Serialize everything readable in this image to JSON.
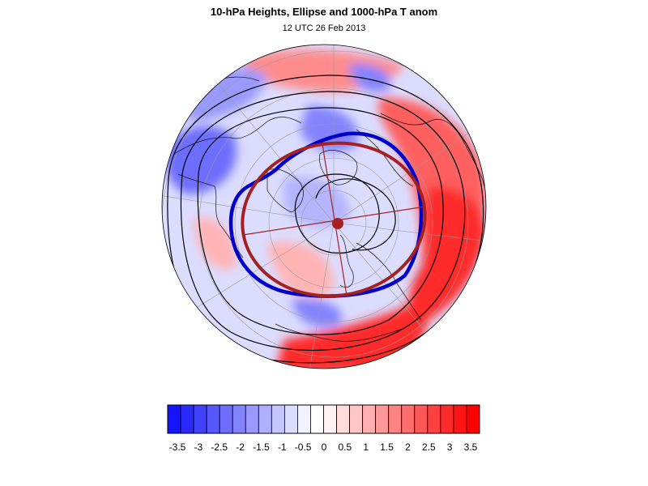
{
  "figure": {
    "title": "10-hPa Heights, Ellipse and 1000-hPa T anom",
    "subtitle": "12 UTC 26 Feb 2013"
  },
  "map": {
    "projection": "north-polar-stereographic",
    "shaded_field": "1000-hPa T anom",
    "contours": "10-hPa Heights",
    "ellipse_color": "#a52121",
    "vortex_edge_color": "#0000cc",
    "warm_anomaly_regions": [
      "east-Asia",
      "north-Pacific",
      "Europe-Atlantic-top"
    ],
    "cold_anomaly_regions": [
      "North-America",
      "Greenland-west",
      "Siberia-north"
    ]
  },
  "colorbar": {
    "tick_labels": [
      "-3.5",
      "-3",
      "-2.5",
      "-2",
      "-1.5",
      "-1",
      "-0.5",
      "0",
      "0.5",
      "1",
      "1.5",
      "2",
      "2.5",
      "3",
      "3.5"
    ],
    "colors": [
      "#1414ff",
      "#2a2aff",
      "#4040ff",
      "#5757ff",
      "#6d6dff",
      "#8383ff",
      "#9999ff",
      "#afafff",
      "#c6c6ff",
      "#dcdcff",
      "#f2f2ff",
      "#ffffff",
      "#fff2f2",
      "#ffdcdc",
      "#ffc6c6",
      "#ffafaf",
      "#ff9999",
      "#ff8383",
      "#ff6d6d",
      "#ff5757",
      "#ff4040",
      "#ff2a2a",
      "#ff1414",
      "#ff0000"
    ]
  }
}
